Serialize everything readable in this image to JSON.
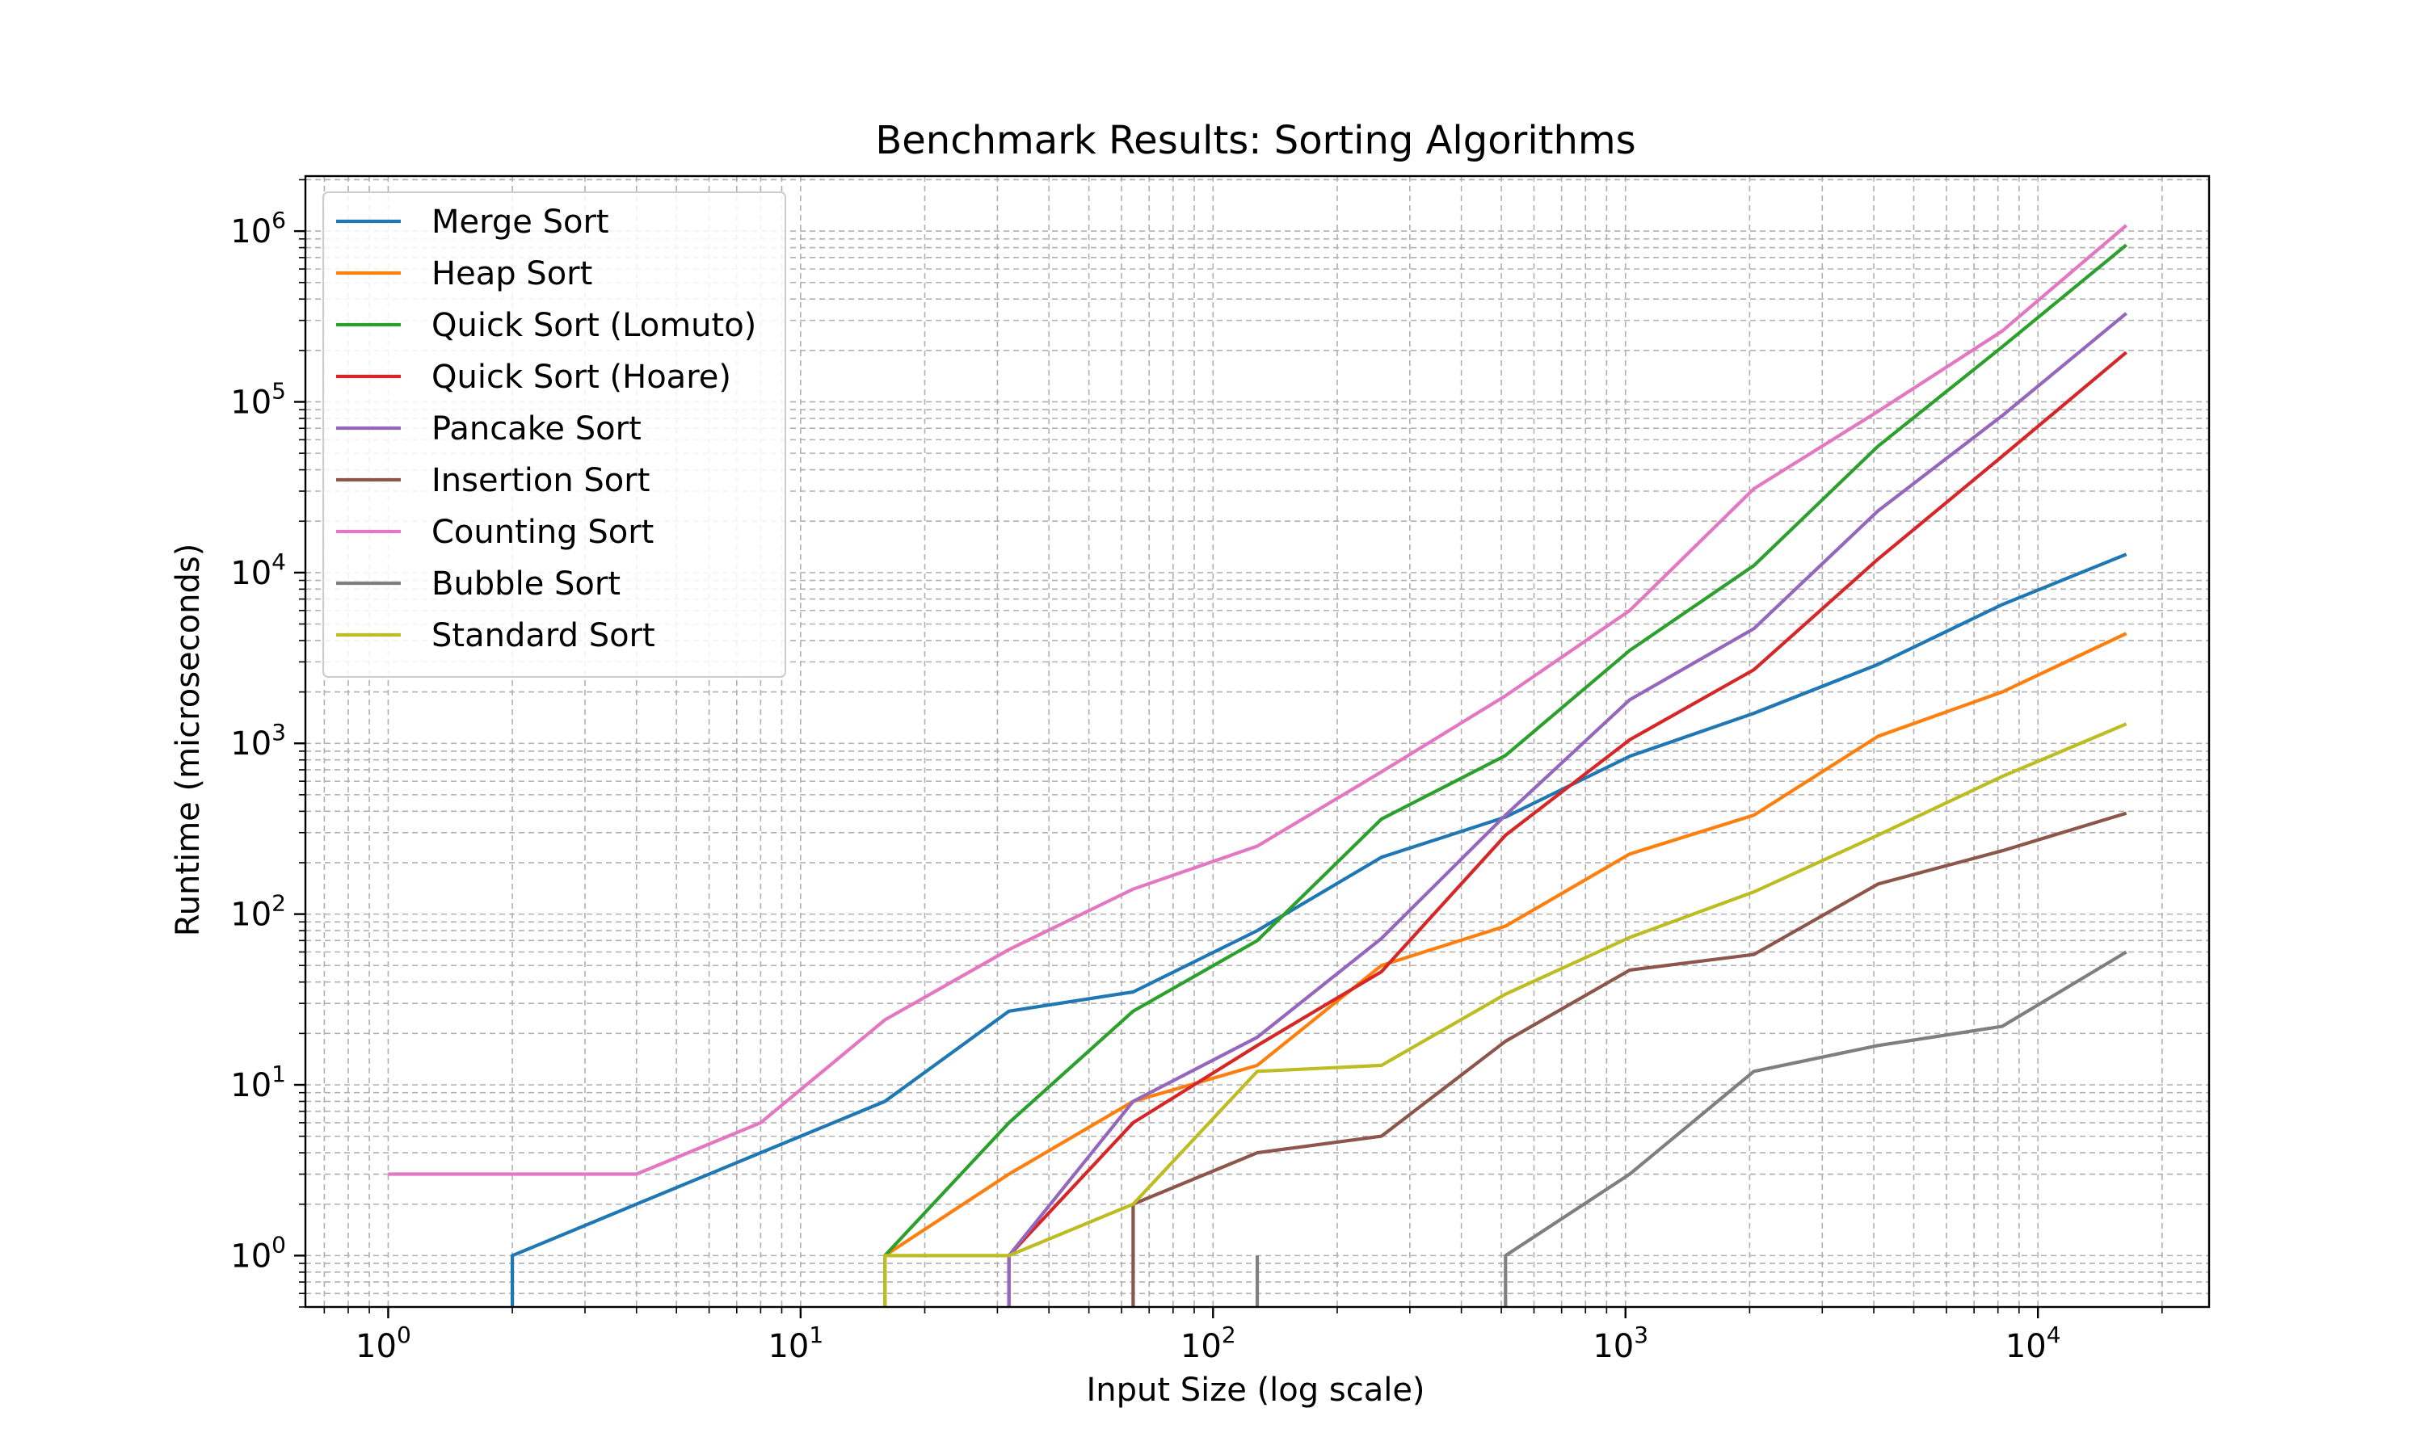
{
  "chart_data": {
    "type": "line",
    "title": "Benchmark Results: Sorting Algorithms",
    "xlabel": "Input Size (log scale)",
    "ylabel": "Runtime (microseconds)",
    "xscale": "log",
    "yscale": "log",
    "xlim": [
      0.63,
      26000
    ],
    "ylim": [
      0.5,
      2100000
    ],
    "grid": true,
    "legend": "upper-left",
    "xticks": [
      {
        "base": "10",
        "exp": "0",
        "value": 1
      },
      {
        "base": "10",
        "exp": "1",
        "value": 10
      },
      {
        "base": "10",
        "exp": "2",
        "value": 100
      },
      {
        "base": "10",
        "exp": "3",
        "value": 1000
      },
      {
        "base": "10",
        "exp": "4",
        "value": 10000
      }
    ],
    "yticks": [
      {
        "base": "10",
        "exp": "0",
        "value": 1
      },
      {
        "base": "10",
        "exp": "1",
        "value": 10
      },
      {
        "base": "10",
        "exp": "2",
        "value": 100
      },
      {
        "base": "10",
        "exp": "3",
        "value": 1000
      },
      {
        "base": "10",
        "exp": "4",
        "value": 10000
      },
      {
        "base": "10",
        "exp": "5",
        "value": 100000
      },
      {
        "base": "10",
        "exp": "6",
        "value": 1000000
      }
    ],
    "x": [
      1,
      2,
      4,
      8,
      16,
      32,
      64,
      128,
      256,
      512,
      1024,
      2048,
      4096,
      8192,
      16384
    ],
    "series": [
      {
        "name": "Merge Sort",
        "color": "#1f77b4",
        "values": [
          0,
          1,
          2,
          4,
          8,
          27,
          35,
          80,
          215,
          370,
          840,
          1500,
          2900,
          6500,
          12800
        ]
      },
      {
        "name": "Heap Sort",
        "color": "#ff7f0e",
        "values": [
          0,
          0,
          0,
          0,
          1,
          3,
          8,
          13,
          50,
          85,
          225,
          380,
          1100,
          2000,
          4400
        ]
      },
      {
        "name": "Quick Sort (Lomuto)",
        "color": "#2ca02c",
        "values": [
          0,
          0,
          0,
          0,
          1,
          6,
          27,
          70,
          360,
          850,
          3500,
          11000,
          55000,
          210000,
          830000
        ]
      },
      {
        "name": "Quick Sort (Hoare)",
        "color": "#d62728",
        "values": [
          0,
          0,
          0,
          0,
          0,
          1,
          6,
          17,
          46,
          290,
          1050,
          2700,
          12000,
          48000,
          195000
        ]
      },
      {
        "name": "Pancake Sort",
        "color": "#9467bd",
        "values": [
          0,
          0,
          0,
          0,
          0,
          1,
          8,
          19,
          72,
          380,
          1800,
          4700,
          23000,
          83000,
          330000
        ]
      },
      {
        "name": "Insertion Sort",
        "color": "#8c564b",
        "values": [
          0,
          0,
          0,
          0,
          0,
          0,
          2,
          4,
          5,
          18,
          47,
          58,
          150,
          235,
          390
        ]
      },
      {
        "name": "Counting Sort",
        "color": "#e377c2",
        "values": [
          3,
          3,
          3,
          6,
          24,
          62,
          140,
          250,
          680,
          1900,
          6000,
          31000,
          88000,
          260000,
          1080000
        ]
      },
      {
        "name": "Bubble Sort",
        "color": "#7f7f7f",
        "values": [
          0,
          0,
          0,
          0,
          0,
          0,
          0,
          0,
          0,
          1,
          3,
          12,
          17,
          22,
          60
        ]
      },
      {
        "name": "Standard Sort",
        "color": "#bcbd22",
        "values": [
          0,
          0,
          0,
          0,
          1,
          1,
          2,
          12,
          13,
          34,
          73,
          135,
          290,
          640,
          1300
        ]
      }
    ]
  }
}
